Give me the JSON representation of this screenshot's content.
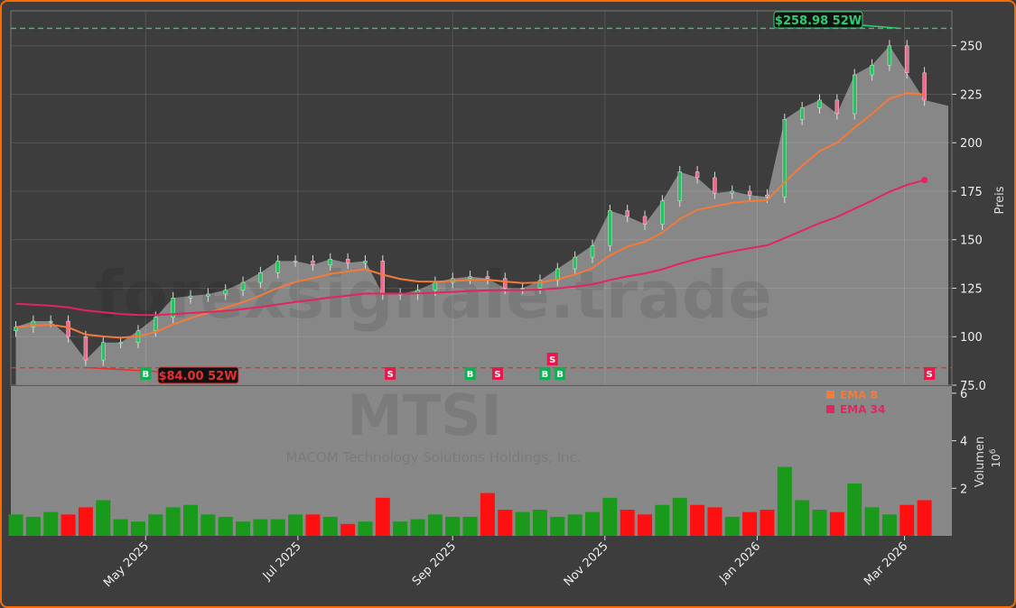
{
  "chart_data": {
    "type": "candlestick",
    "ticker": "MTSI",
    "company": "MACOM Technology Solutions Holdings, Inc.",
    "watermark": "forexsignale.trade",
    "ylabel": "Preis",
    "vol_label": "Volumen",
    "vol_exp": "10",
    "vol_exp_sup": "6",
    "ylim": [
      75,
      268
    ],
    "yticks": [
      75,
      100,
      125,
      150,
      175,
      200,
      225,
      250
    ],
    "ytick_labels": [
      "75.0",
      "100",
      "125",
      "150",
      "175",
      "200",
      "225",
      "250"
    ],
    "vol_ylim": [
      0,
      6.3
    ],
    "vol_ticks": [
      2,
      4,
      6
    ],
    "xlim": [
      "2025-03-08",
      "2026-03-20"
    ],
    "xticks": [
      {
        "date": "2025-05-01",
        "label": "May 2025"
      },
      {
        "date": "2025-07-01",
        "label": "Jul 2025"
      },
      {
        "date": "2025-09-01",
        "label": "Sep 2025"
      },
      {
        "date": "2025-11-01",
        "label": "Nov 2025"
      },
      {
        "date": "2026-01-01",
        "label": "Jan 2026"
      },
      {
        "date": "2026-03-01",
        "label": "Mar 2026"
      }
    ],
    "start_date": "2025-03-10",
    "interval_days": 7,
    "close": [
      105,
      108,
      108,
      100,
      88,
      97,
      97,
      103,
      110,
      120,
      121,
      122,
      124,
      128,
      133,
      139,
      139,
      137,
      140,
      138,
      139,
      122,
      122,
      124,
      128,
      130,
      131,
      130,
      125,
      125,
      129,
      135,
      141,
      147,
      165,
      162,
      158,
      170,
      185,
      182,
      174,
      175,
      173,
      172,
      212,
      218,
      222,
      215,
      235,
      240,
      250,
      236,
      222
    ],
    "volume_millions": [
      0.9,
      0.8,
      1.0,
      0.9,
      1.2,
      1.5,
      0.7,
      0.6,
      0.9,
      1.2,
      1.3,
      0.9,
      0.8,
      0.6,
      0.7,
      0.7,
      0.9,
      0.9,
      0.8,
      0.5,
      0.6,
      1.6,
      0.6,
      0.7,
      0.9,
      0.8,
      0.8,
      1.8,
      1.1,
      1.0,
      1.1,
      0.8,
      0.9,
      1.0,
      1.6,
      1.1,
      0.9,
      1.3,
      1.6,
      1.3,
      1.2,
      0.8,
      1.0,
      1.1,
      2.9,
      1.5,
      1.1,
      1.0,
      2.2,
      1.2,
      0.9,
      1.3,
      1.5
    ],
    "high_52w": {
      "value": 258.98,
      "label": "$258.98 52W",
      "date": "2026-02-27"
    },
    "low_52w": {
      "value": 84.0,
      "label": "$84.00 52W",
      "date": "2025-04-08"
    },
    "signals": [
      {
        "type": "B",
        "date": "2025-05-01"
      },
      {
        "type": "S",
        "date": "2025-08-07"
      },
      {
        "type": "B",
        "date": "2025-09-08"
      },
      {
        "type": "S",
        "date": "2025-09-19"
      },
      {
        "type": "B",
        "date": "2025-10-08"
      },
      {
        "type": "S",
        "date": "2025-10-11"
      },
      {
        "type": "B",
        "date": "2025-10-14"
      },
      {
        "type": "S",
        "date": "2026-03-11"
      }
    ],
    "series": [
      {
        "name": "EMA 8",
        "period": 8,
        "color": "#f47a3a"
      },
      {
        "name": "EMA 34",
        "period": 34,
        "color": "#e3245f"
      }
    ],
    "colors": {
      "up": "#22c55e",
      "down": "#f06a8a",
      "vol_up": "#1a9a1a",
      "vol_down": "#ff1010",
      "area": "#878787",
      "high": "#2ecc71",
      "low": "#e83030",
      "buy": "#10b050",
      "sell": "#e8184a"
    }
  }
}
